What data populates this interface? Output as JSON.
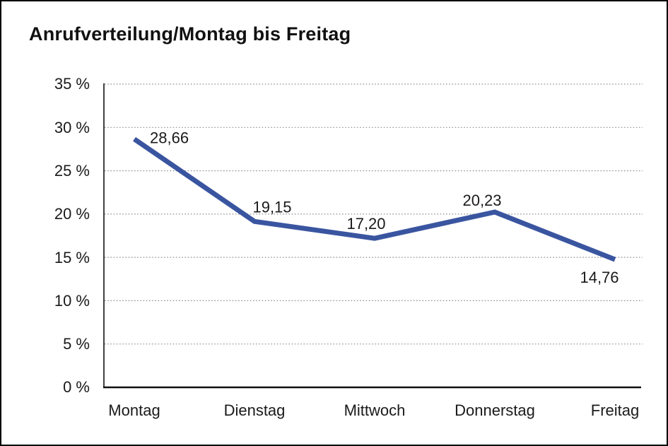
{
  "window": {
    "background": "#ffffff",
    "border_color": "#000000"
  },
  "chart_data": {
    "type": "line",
    "title": "Anrufverteilung/Montag bis Freitag",
    "categories": [
      "Montag",
      "Dienstag",
      "Mittwoch",
      "Donnerstag",
      "Freitag"
    ],
    "series": [
      {
        "name": "Anrufverteilung",
        "values": [
          28.66,
          19.15,
          17.2,
          20.23,
          14.76
        ],
        "point_labels": [
          "28,66",
          "19,15",
          "17,20",
          "20,23",
          "14,76"
        ]
      }
    ],
    "xlabel": "",
    "ylabel": "",
    "ylim": [
      0,
      35
    ],
    "ytick_step": 5,
    "ytick_labels": [
      "35 %",
      "30 %",
      "25 %",
      "20 %",
      "15 %",
      "10 %",
      "5 %",
      "0 %"
    ],
    "grid": "horizontal dotted",
    "legend_position": "none",
    "line_color": "#3A55A0",
    "gridline_color": "#8f8f8f",
    "axis_color": "#111111",
    "text_color": "#1a1a1a"
  }
}
